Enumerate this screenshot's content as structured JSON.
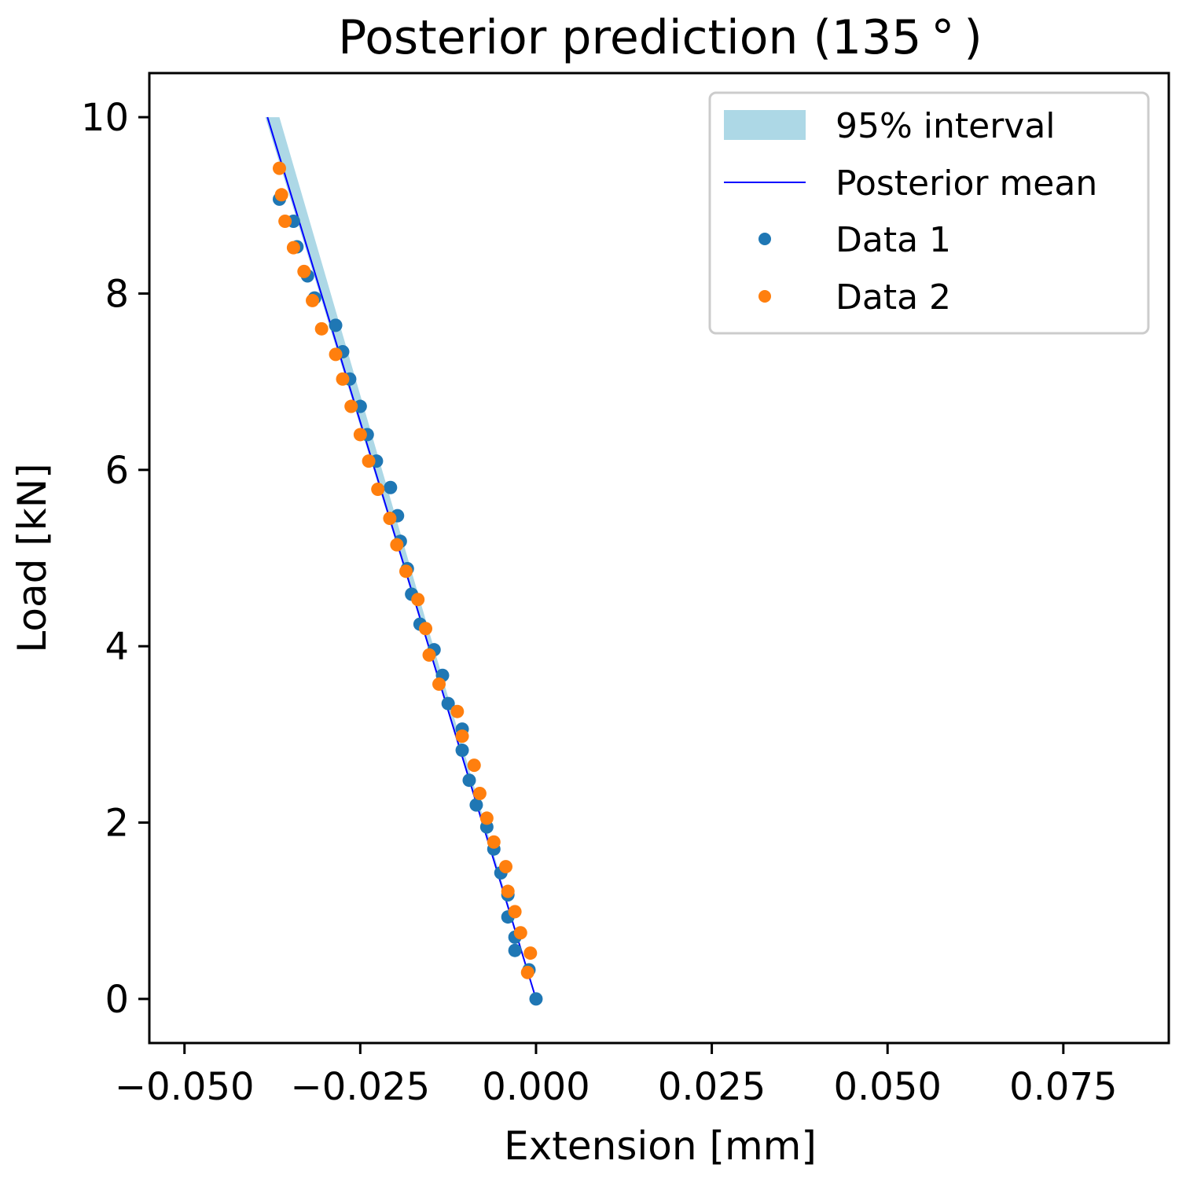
{
  "chart_data": {
    "type": "scatter",
    "title": "Posterior prediction (135 ° )",
    "xlabel": "Extension [mm]",
    "ylabel": "Load [kN]",
    "xlim": [
      -0.055,
      0.09
    ],
    "ylim": [
      -0.5,
      10.5
    ],
    "x_ticks": [
      -0.05,
      -0.025,
      0.0,
      0.025,
      0.05,
      0.075
    ],
    "x_tick_labels": [
      "−0.050",
      "−0.025",
      "0.000",
      "0.025",
      "0.050",
      "0.075"
    ],
    "y_ticks": [
      0,
      2,
      4,
      6,
      8,
      10
    ],
    "y_tick_labels": [
      "0",
      "2",
      "4",
      "6",
      "8",
      "10"
    ],
    "grid": false,
    "legend_position": "top-right",
    "colors": {
      "interval": "#add8e6",
      "mean": "#0000ff",
      "data1": "#1f77b4",
      "data2": "#ff7f0e"
    },
    "interval": {
      "name": "95% interval",
      "load": [
        0,
        10
      ],
      "lower": [
        0.0,
        -0.0385
      ],
      "upper": [
        0.0,
        -0.0365
      ]
    },
    "mean": {
      "name": "Posterior mean",
      "x": [
        0.0,
        -0.0382
      ],
      "y": [
        0,
        10
      ]
    },
    "series": [
      {
        "name": "Data 1",
        "x": [
          0.0,
          -0.001,
          -0.003,
          -0.003,
          -0.004,
          -0.004,
          -0.005,
          -0.006,
          -0.007,
          -0.0085,
          -0.0095,
          -0.0105,
          -0.0105,
          -0.0125,
          -0.0133,
          -0.0145,
          -0.0165,
          -0.0177,
          -0.0183,
          -0.0193,
          -0.0197,
          -0.0207,
          -0.0227,
          -0.024,
          -0.025,
          -0.0265,
          -0.0275,
          -0.0285,
          -0.0315,
          -0.0325,
          -0.034,
          -0.0345,
          -0.0365
        ],
        "y": [
          0.0,
          0.33,
          0.55,
          0.7,
          0.93,
          1.18,
          1.43,
          1.7,
          1.95,
          2.2,
          2.48,
          2.82,
          3.06,
          3.35,
          3.67,
          3.96,
          4.25,
          4.59,
          4.88,
          5.19,
          5.48,
          5.8,
          6.1,
          6.4,
          6.72,
          7.03,
          7.34,
          7.64,
          7.95,
          8.2,
          8.53,
          8.82,
          9.07
        ]
      },
      {
        "name": "Data 2",
        "x": [
          -0.0012,
          -0.0008,
          -0.0022,
          -0.003,
          -0.004,
          -0.0043,
          -0.006,
          -0.007,
          -0.008,
          -0.0088,
          -0.0105,
          -0.0112,
          -0.0138,
          -0.0152,
          -0.0157,
          -0.0168,
          -0.0185,
          -0.0198,
          -0.0208,
          -0.0225,
          -0.0238,
          -0.025,
          -0.0263,
          -0.0275,
          -0.0285,
          -0.0305,
          -0.0318,
          -0.033,
          -0.0345,
          -0.0357,
          -0.0362,
          -0.0365
        ],
        "y": [
          0.3,
          0.52,
          0.75,
          0.99,
          1.22,
          1.5,
          1.78,
          2.05,
          2.33,
          2.65,
          2.98,
          3.26,
          3.57,
          3.9,
          4.2,
          4.53,
          4.85,
          5.15,
          5.45,
          5.78,
          6.1,
          6.4,
          6.72,
          7.03,
          7.31,
          7.6,
          7.92,
          8.25,
          8.52,
          8.82,
          9.12,
          9.42
        ]
      }
    ]
  }
}
